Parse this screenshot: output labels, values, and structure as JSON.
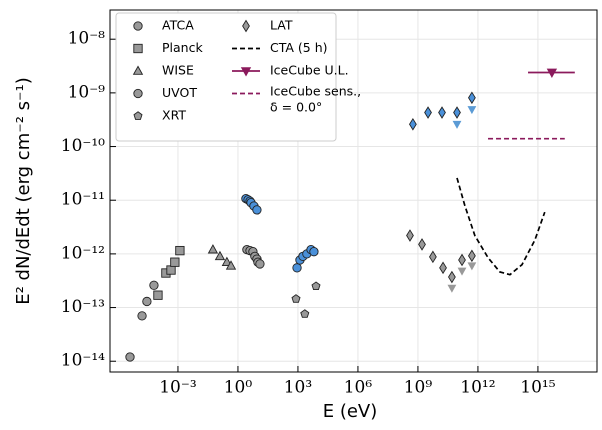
{
  "chart_data": {
    "type": "scatter",
    "xlabel": "E (eV)",
    "ylabel": "E² dN/dEdt (erg cm⁻² s⁻¹)",
    "xscale": "log",
    "yscale": "log",
    "grid": true,
    "legend": "upper left",
    "xlim": [
      4e-07,
      9e+17
    ],
    "ylim": [
      6.3e-15,
      3.5e-08
    ],
    "xticks": [
      {
        "value": 0.001,
        "label": "10⁻³"
      },
      {
        "value": 1,
        "label": "10⁰"
      },
      {
        "value": 1000,
        "label": "10³"
      },
      {
        "value": 1000000.0,
        "label": "10⁶"
      },
      {
        "value": 1000000000.0,
        "label": "10⁹"
      },
      {
        "value": 1000000000000.0,
        "label": "10¹²"
      },
      {
        "value": 1000000000000000.0,
        "label": "10¹⁵"
      }
    ],
    "yticks": [
      {
        "value": 1e-14,
        "label": "10⁻¹⁴"
      },
      {
        "value": 1e-13,
        "label": "10⁻¹³"
      },
      {
        "value": 1e-12,
        "label": "10⁻¹²"
      },
      {
        "value": 1e-11,
        "label": "10⁻¹¹"
      },
      {
        "value": 1e-10,
        "label": "10⁻¹⁰"
      },
      {
        "value": 1e-09,
        "label": "10⁻⁹"
      },
      {
        "value": 1e-08,
        "label": "10⁻⁸"
      }
    ],
    "series": [
      {
        "name": "ATCA",
        "kind": "scatter",
        "marker": "circle",
        "color": "#999999",
        "x": [
          4e-06,
          1.6e-05,
          2.8e-05,
          6.3e-05
        ],
        "values": [
          1.2e-14,
          7e-14,
          1.3e-13,
          2.6e-13
        ]
      },
      {
        "name": "Planck",
        "kind": "scatter",
        "marker": "square",
        "color": "#999999",
        "x": [
          0.0001,
          0.00025,
          0.00045,
          0.0007,
          0.00125
        ],
        "values": [
          1.7e-13,
          4.4e-13,
          5e-13,
          7e-13,
          1.15e-12
        ]
      },
      {
        "name": "WISE",
        "kind": "scatter",
        "marker": "triangle-up",
        "color": "#999999",
        "x": [
          0.056,
          0.126,
          0.28,
          0.45
        ],
        "values": [
          1.2e-12,
          9e-13,
          7e-13,
          6e-13
        ]
      },
      {
        "name": "UVOT",
        "kind": "scatter",
        "marker": "circle",
        "color": "#999999",
        "x": [
          2.8,
          4,
          5.6,
          7,
          8.9,
          10,
          12.6
        ],
        "values": [
          1.2e-12,
          1.15e-12,
          1.1e-12,
          9e-13,
          8e-13,
          7e-13,
          6.5e-13
        ]
      },
      {
        "name": "XRT",
        "kind": "scatter",
        "marker": "pentagon",
        "color": "#999999",
        "x": [
          800,
          2200,
          8000
        ],
        "values": [
          1.45e-13,
          7.6e-14,
          2.5e-13
        ]
      },
      {
        "name": "LAT",
        "kind": "scatter",
        "marker": "diamond",
        "color": "#999999",
        "x": [
          400000000.0,
          1600000000.0,
          5600000000.0,
          18000000000.0,
          50000000000.0,
          160000000000.0,
          500000000000.0
        ],
        "values": [
          2.2e-12,
          1.5e-12,
          8.8e-13,
          5.5e-13,
          3.7e-13,
          7.7e-13,
          9.2e-13
        ]
      },
      {
        "name": "CTA (5 h)",
        "kind": "line",
        "dash": true,
        "color": "#000000",
        "x": [
          90000000000.0,
          220000000000.0,
          700000000000.0,
          3200000000000.0,
          12600000000000.0,
          40000000000000.0,
          160000000000000.0,
          700000000000000.0,
          2200000000000000.0
        ],
        "values": [
          2.6e-11,
          8e-12,
          2.2e-12,
          8.5e-13,
          4.6e-13,
          4.1e-13,
          6.3e-13,
          1.8e-12,
          6e-12
        ]
      },
      {
        "name": "IceCube U.L.",
        "kind": "scatter",
        "marker": "triangle-down",
        "color": "#8b1a5c",
        "x": [
          5000000000000000.0
        ],
        "x_range": [
          [
            320000000000000.0,
            7e+16
          ]
        ],
        "values": [
          2.4e-09
        ]
      },
      {
        "name": "IceCube sens., δ = 0.0°",
        "kind": "line",
        "dash": true,
        "color": "#8b1a5c",
        "x": [
          3200000000000.0,
          2.2e+16
        ],
        "values": [
          1.4e-10,
          1.4e-10
        ]
      },
      {
        "kind": "scatter",
        "marker": "circle",
        "color": "#4a90d9",
        "x": [
          2.5,
          3.2,
          4,
          4.5,
          6.3,
          8.9
        ],
        "values": [
          1.07e-11,
          1.02e-11,
          9.6e-12,
          9e-12,
          7.8e-12,
          6.6e-12
        ]
      },
      {
        "kind": "scatter",
        "marker": "circle",
        "color": "#4a90d9",
        "x": [
          900,
          1260,
          1780,
          2800,
          4500,
          6300
        ],
        "values": [
          5.5e-13,
          7.7e-13,
          9e-13,
          1e-12,
          1.2e-12,
          1.1e-12
        ]
      },
      {
        "kind": "scatter",
        "marker": "diamond",
        "color": "#4a90d9",
        "x": [
          560000000.0,
          3200000000.0,
          16000000000.0,
          90000000000.0,
          500000000000.0
        ],
        "values": [
          2.6e-10,
          4.3e-10,
          4.3e-10,
          4.3e-10,
          8.1e-10
        ]
      },
      {
        "kind": "scatter",
        "marker": "triangle-down-plain",
        "color": "#5b9bd5",
        "x": [
          90000000000.0,
          500000000000.0
        ],
        "values": [
          2.6e-10,
          4.9e-10
        ]
      },
      {
        "kind": "scatter",
        "marker": "triangle-down-plain",
        "color": "#999999",
        "x": [
          50000000000.0,
          160000000000.0,
          500000000000.0
        ],
        "values": [
          2.3e-13,
          4.8e-13,
          6e-13
        ]
      }
    ]
  }
}
